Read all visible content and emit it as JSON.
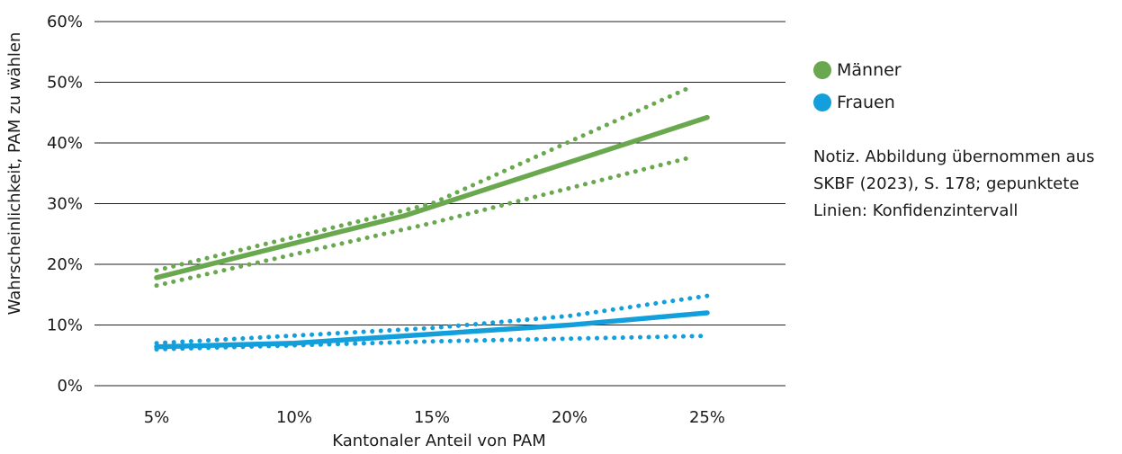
{
  "chart_data": {
    "type": "line",
    "xlabel": "Kantonaler Anteil von PAM",
    "ylabel": "Wahrscheinlichkeit, PAM zu wählen",
    "x_ticks": [
      "5%",
      "10%",
      "15%",
      "20%",
      "25%"
    ],
    "y_ticks": [
      "0%",
      "10%",
      "20%",
      "30%",
      "40%",
      "50%",
      "60%"
    ],
    "xlim": [
      5,
      25
    ],
    "ylim": [
      0,
      60
    ],
    "grid": "horizontal",
    "legend_position": "right",
    "series": [
      {
        "name": "Männer",
        "color": "#6aa84f",
        "style": "solid",
        "x": [
          5,
          14,
          25
        ],
        "y": [
          17.8,
          28,
          44.2
        ]
      },
      {
        "name": "",
        "color": "#6aa84f",
        "style": "dotted",
        "x": [
          5,
          15,
          24.3
        ],
        "y": [
          19,
          30,
          49
        ]
      },
      {
        "name": "",
        "color": "#6aa84f",
        "style": "dotted",
        "x": [
          5,
          15,
          24.3
        ],
        "y": [
          16.5,
          26.8,
          37.5
        ]
      },
      {
        "name": "Frauen",
        "color": "#139fdc",
        "style": "solid",
        "x": [
          5,
          10,
          20,
          25
        ],
        "y": [
          6.4,
          7,
          10,
          12
        ]
      },
      {
        "name": "",
        "color": "#139fdc",
        "style": "dotted",
        "x": [
          5,
          15,
          20,
          25
        ],
        "y": [
          7,
          9.5,
          11.5,
          14.8
        ]
      },
      {
        "name": "",
        "color": "#139fdc",
        "style": "dotted",
        "x": [
          5,
          15,
          25
        ],
        "y": [
          6,
          7.3,
          8.2
        ]
      }
    ]
  },
  "legend": {
    "items": [
      {
        "label": "Männer",
        "color": "#6aa84f"
      },
      {
        "label": "Frauen",
        "color": "#139fdc"
      }
    ]
  },
  "note": "Notiz. Abbildung übernommen aus SKBF (2023), S. 178; gepunktete Linien: Konfidenzintervall"
}
